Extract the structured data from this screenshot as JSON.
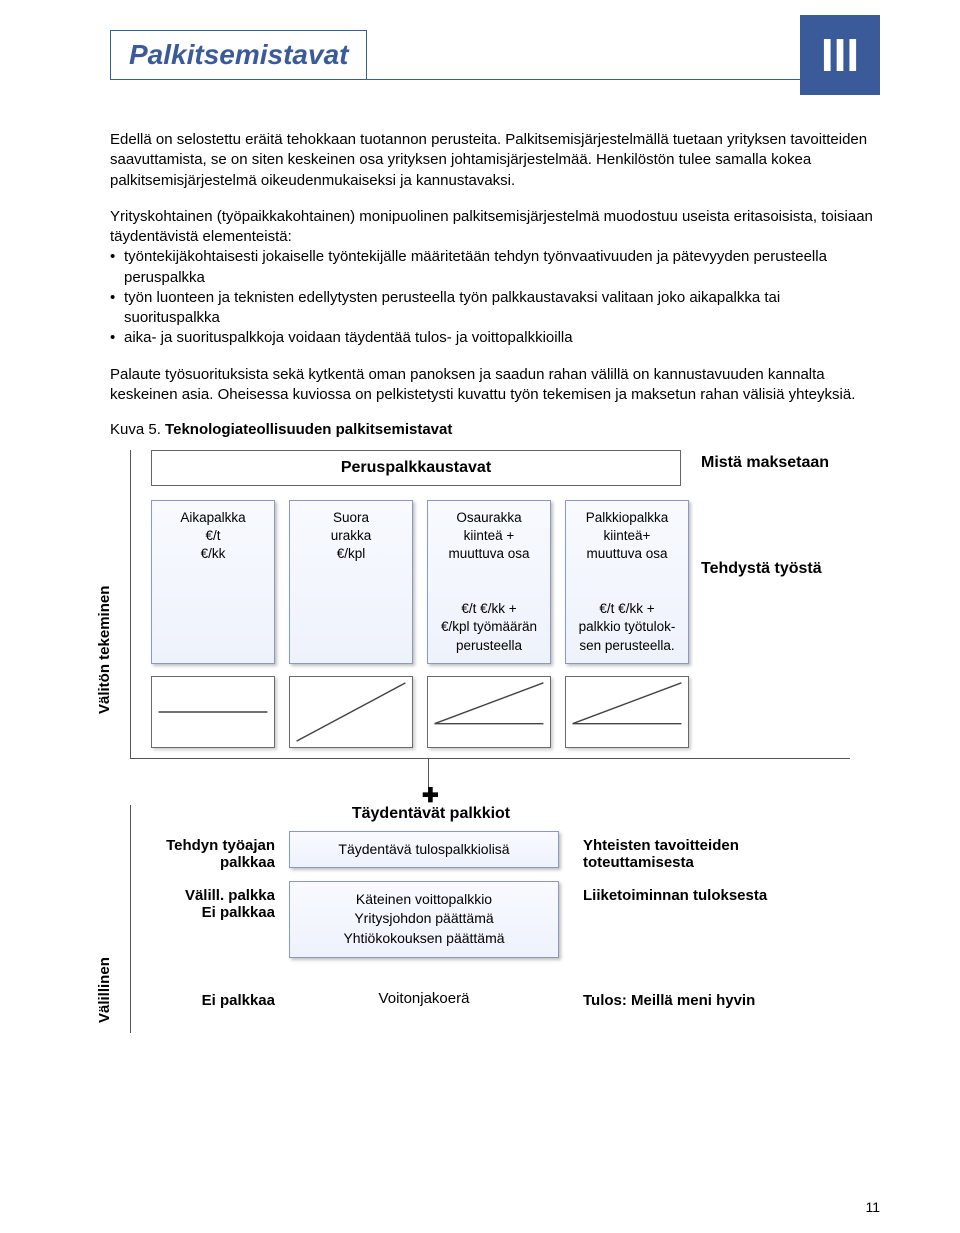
{
  "header": {
    "title": "Palkitsemistavat",
    "roman": "III",
    "title_color": "#3a5a9a"
  },
  "paragraphs": {
    "p1": "Edellä on selostettu eräitä tehokkaan tuotannon perusteita. Palkitsemisjärjestelmällä tuetaan yrityksen tavoitteiden saavuttamista, se on siten keskeinen osa yrityksen johtamisjärjestelmää. Henkilöstön tulee samalla kokea palkitsemisjärjestelmä oikeudenmukaiseksi ja kannustavaksi.",
    "p2intro": "Yrityskohtainen (työpaikkakohtainen) monipuolinen palkitsemisjärjestelmä muodostuu useista eritasoisista, toisiaan täydentävistä elementeistä:",
    "b1": "työntekijäkohtaisesti jokaiselle työntekijälle määritetään tehdyn työnvaativuuden ja pätevyyden perusteella peruspalkka",
    "b2": "työn luonteen ja teknisten edellytysten perusteella työn palkkaustavaksi valitaan joko aikapalkka tai suorituspalkka",
    "b3": "aika- ja suorituspalkkoja voidaan täydentää tulos- ja voittopalkkioilla",
    "p3": "Palaute työsuorituksista sekä kytkentä oman panoksen ja saadun rahan välillä on kannustavuuden kannalta keskeinen asia. Oheisessa kuviossa on pelkistetysti kuvattu työn tekemisen ja maksetun rahan välisiä yhteyksiä."
  },
  "kuva": {
    "prefix": "Kuva 5. ",
    "title": "Teknologiateollisuuden palkitsemistavat"
  },
  "diagram": {
    "top_header": "Peruspalkkaustavat",
    "right_header": "Mistä maksetaan",
    "vlabel_top": "Välitön tekeminen",
    "vlabel_bottom": "Välillinen",
    "right_side": "Tehdystä työstä",
    "cards": [
      "Aikapalkka\n€/t\n€/kk",
      "Suora\nurakka\n€/kpl",
      "Osaurakka\nkiinteä +\nmuuttuva osa\n\n€/t €/kk +\n€/kpl työmäärän\nperusteella",
      "Palkkiopalkka\nkiinteä+\nmuuttuva osa\n\n€/t €/kk +\npalkkio työtulok-\nsen perusteella."
    ],
    "minicharts": [
      {
        "type": "flat",
        "stroke": "#444",
        "bg": "#ffffff"
      },
      {
        "type": "slope",
        "stroke": "#444",
        "bg": "#ffffff"
      },
      {
        "type": "mixed",
        "stroke": "#444",
        "bg": "#ffffff"
      },
      {
        "type": "mixed",
        "stroke": "#444",
        "bg": "#ffffff"
      }
    ],
    "supp_title": "Täydentävät palkkiot",
    "rows": [
      {
        "left_bold": "Tehdyn työajan",
        "left_plain": "palkkaa",
        "mid": "Täydentävä tulospalkkiolisä",
        "right": "Yhteisten tavoitteiden toteuttamisesta"
      },
      {
        "left_bold": "Välill. palkka",
        "left_plain": "Ei palkkaa",
        "mid": "Käteinen voittopalkkio\nYritysjohdon päättämä\nYhtiökokouksen päättämä",
        "right": "Liiketoiminnan tuloksesta"
      }
    ],
    "plainrow": {
      "left": "Ei palkkaa",
      "mid": "Voitonjakoerä",
      "right": "Tulos: Meillä meni hyvin"
    }
  },
  "page_number": "11"
}
